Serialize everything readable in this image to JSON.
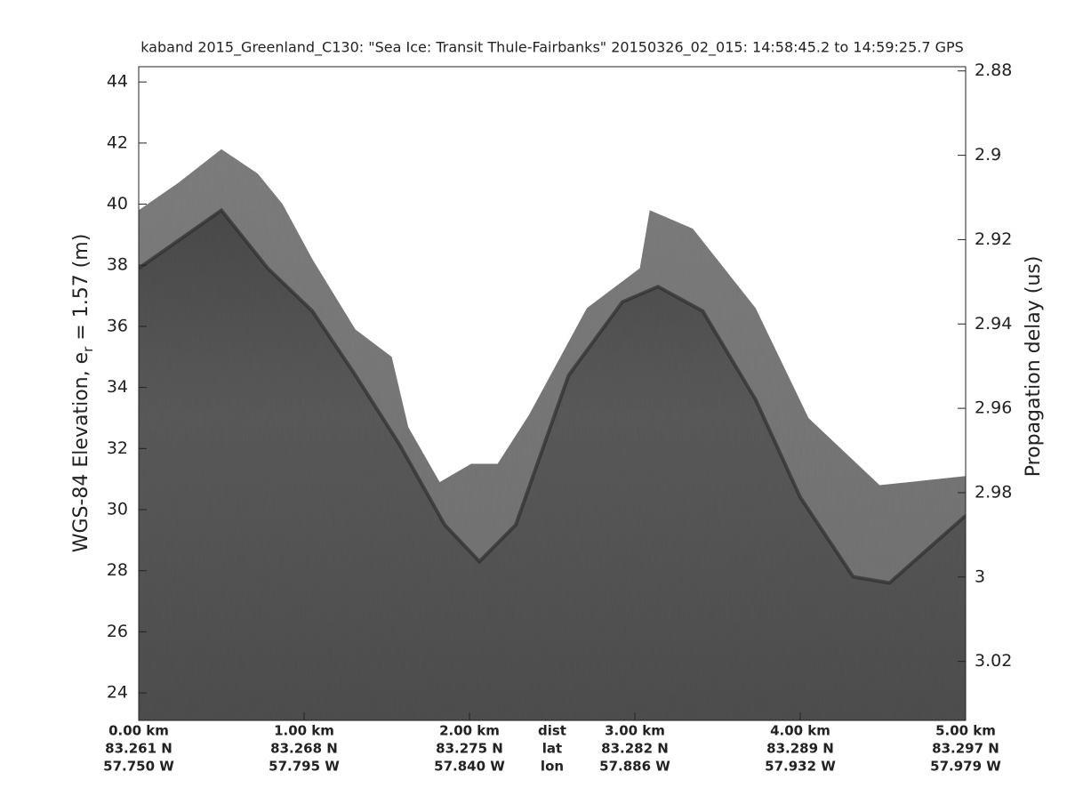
{
  "chart_data": {
    "type": "echogram",
    "title": "kaband 2015_Greenland_C130: \"Sea Ice: Transit Thule-Fairbanks\"  20150326_02_015: 14:58:45.2 to 14:59:25.7 GPS",
    "ylabel_parts": [
      "WGS-84 Elevation, e",
      "r",
      " = 1.57 (m)"
    ],
    "y2label": "Propagation delay (us)",
    "xlim": [
      0,
      5
    ],
    "xticks": [
      {
        "value": 0,
        "label": "0.00 km"
      },
      {
        "value": 1,
        "label": "1.00 km"
      },
      {
        "value": 2,
        "label": "2.00 km"
      },
      {
        "value": 3,
        "label": "3.00 km"
      },
      {
        "value": 4,
        "label": "4.00 km"
      },
      {
        "value": 5,
        "label": "5.00 km"
      }
    ],
    "lat_labels": [
      "83.261 N",
      "83.268 N",
      "83.275 N",
      "83.282 N",
      "83.289 N",
      "83.297 N"
    ],
    "lon_labels": [
      "57.750 W",
      "57.795 W",
      "57.840 W",
      "57.886 W",
      "57.932 W",
      "57.979 W"
    ],
    "row_labels": [
      "dist",
      "lat",
      "lon"
    ],
    "ylim": [
      23.1,
      44.5
    ],
    "yticks": [
      24,
      26,
      28,
      30,
      32,
      34,
      36,
      38,
      40,
      42,
      44
    ],
    "y2lim": [
      2.879,
      3.034
    ],
    "y2_reversed": true,
    "y2ticks": [
      2.88,
      2.9,
      2.92,
      2.94,
      2.96,
      2.98,
      3,
      3.02
    ],
    "series": [
      {
        "color": "#7b7b7b",
        "x": [
          0,
          0.24,
          0.5,
          0.72,
          0.87,
          1.05,
          1.31,
          1.53,
          1.63,
          1.82,
          2.01,
          2.17,
          2.36,
          2.71,
          3.03,
          3.09,
          3.35,
          3.73,
          4.05,
          4.48,
          5.0
        ],
        "values": [
          39.8,
          40.7,
          41.8,
          41.0,
          40.0,
          38.2,
          35.9,
          35.0,
          32.7,
          30.9,
          31.5,
          31.5,
          33.1,
          36.6,
          37.9,
          39.8,
          39.2,
          36.6,
          33.0,
          30.8,
          31.1
        ]
      },
      {
        "color": "#585858",
        "x": [
          0,
          0.5,
          0.78,
          1.05,
          1.31,
          1.58,
          1.85,
          2.06,
          2.28,
          2.6,
          2.925,
          3.14,
          3.41,
          3.73,
          4.0,
          4.32,
          4.54,
          5.0
        ],
        "values": [
          37.9,
          39.8,
          37.9,
          36.5,
          34.4,
          32.1,
          29.5,
          28.3,
          29.5,
          34.4,
          36.8,
          37.3,
          36.5,
          33.6,
          30.4,
          27.8,
          27.6,
          29.8
        ]
      }
    ]
  }
}
